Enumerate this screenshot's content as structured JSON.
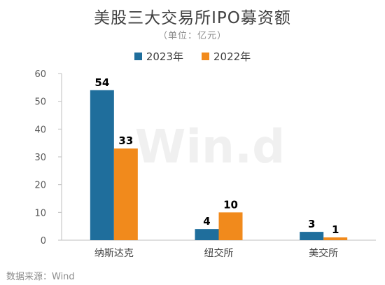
{
  "title": "美股三大交易所IPO募资额",
  "subtitle": "（单位：亿元）",
  "watermark": "Win.d",
  "source": "数据来源：Wind",
  "colors": {
    "series_2023": "#1f6e9c",
    "series_2022": "#f18a1c",
    "grid": "#d9d9d9",
    "text": "#404040"
  },
  "chart_data": {
    "type": "bar",
    "categories": [
      "纳斯达克",
      "纽交所",
      "美交所"
    ],
    "series": [
      {
        "name": "2023年",
        "values": [
          54,
          4,
          3
        ]
      },
      {
        "name": "2022年",
        "values": [
          33,
          10,
          1
        ]
      }
    ],
    "ylim": [
      0,
      60
    ],
    "yticks": [
      "0",
      "10",
      "20",
      "30",
      "40",
      "50",
      "60"
    ],
    "data_labels": [
      [
        "54",
        "4",
        "3"
      ],
      [
        "33",
        "10",
        "1"
      ]
    ],
    "grid": false,
    "legend_position": "top"
  }
}
